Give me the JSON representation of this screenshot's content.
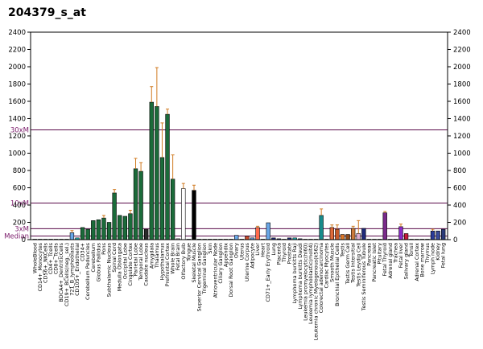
{
  "chart_data": {
    "type": "bar",
    "title": "204379_s_at",
    "ylim": [
      0,
      2400
    ],
    "yticks": [
      0,
      200,
      400,
      600,
      800,
      1000,
      1200,
      1400,
      1600,
      1800,
      2000,
      2200,
      2400
    ],
    "left_axis_ticks": [
      "0",
      "200",
      "400",
      "600",
      "800",
      "1000",
      "1200",
      "1400",
      "1600",
      "1800",
      "2000",
      "2200",
      "2400"
    ],
    "right_axis_ticks": [
      "0",
      "200",
      "400",
      "600",
      "800",
      "1000",
      "1200",
      "1400",
      "1600",
      "1800",
      "2000",
      "2200",
      "2400"
    ],
    "reference_lines": [
      {
        "label": "30xM",
        "value": 1270
      },
      {
        "label": "10xM",
        "value": 423
      },
      {
        "label": "3xM",
        "value": 127
      },
      {
        "label": "Median",
        "value": 42
      }
    ],
    "categories": [
      "WholeBlood",
      "CD14+_Monocytes",
      "CD56+_NKCells",
      "CD4+_Tcells",
      "CD8+_Tcells",
      "BDCA4+_DentriticCells",
      "CD19+_BCells(neg._sel.)",
      "721_B_lymphoblasts",
      "CD105+_Endothelial",
      "CD34+",
      "Cerebellum Peduncles",
      "Cerebellum",
      "Globus Pallidus",
      "Pons",
      "Subthalamic Nucleus",
      "Spinal Cord",
      "Medulla Oblongata",
      "Occipital Lobe",
      "Cingulate Cortex",
      "Parietal Lobe",
      "Temporal Lobe",
      "Caudate nucleus",
      "Amygdala",
      "Thalamus",
      "Hypothalamus",
      "Prefrontal Cortex",
      "Whole Brain",
      "Fetal Brain",
      "Olfactory Bulb",
      "Tongue",
      "Skeletal Muscle",
      "Superior Cervical Ganglion",
      "Trigeminal Ganglion",
      "Skin",
      "Atrioventricular Node",
      "Ciliary Ganglion",
      "Appendix",
      "Dorsal Root Ganglion",
      "Ovary",
      "Uterus",
      "Uterine Corpus",
      "Adipocyte",
      "Liver",
      "Heart",
      "CD71+_Early Erythroid",
      "Lung",
      "Placenta",
      "Thyroid",
      "Prostate",
      "Lymphoma burkitts Raji",
      "Lymphoma burkitts Daudi",
      "Leukemia promyelocytic(hl60)",
      "Leukemia lymphoblastic(molt4)",
      "Leukemia chronic Myelogenous(k562)",
      "Colorectal adenocarcinoma",
      "Cardiac Myocytes",
      "Smooth Muscle",
      "Bronchial Epithelial Cells",
      "Testis",
      "Testis Germ Cell",
      "Testis Intersitial",
      "Testis Leydig Cell",
      "Testis Seminiferous Tubule",
      "Pancreas",
      "Pancreatic Islet",
      "Pituitary",
      "Fetal Thyroid",
      "Adrenal gland",
      "Trachea",
      "Fetal liver",
      "Salivary gland",
      "Tonsil",
      "Adrenal Cortex",
      "Bone marrow",
      "Thymus",
      "Lymph node",
      "Kidney",
      "Fetal lung"
    ],
    "x_labels_shown": [
      "WholeBlood",
      "CD14+_Monocytes",
      "CD56+_NKCells",
      "CD4+_Tcells",
      "CD8+_Tcells",
      "BDCA4+_DentriticCells",
      "CD19+_BCells(neg._sel.)",
      "721_B_lymphoblasts",
      "CD105+_Endothelial",
      "CD34+",
      "Cerebellum Peduncles",
      "Cerebellum",
      "Globus Pallidus",
      "Pons",
      "Subthalamic Nucleus",
      "Spinal Cord",
      "Medulla Oblongata",
      "Occipital Lobe",
      "Cingulate Cortex",
      "Parietal Lobe",
      "Temporal Lobe",
      "Caudate nucleus",
      "Amygdala",
      "Thalamus",
      "Hypothalamus",
      "Prefrontal Cortex",
      "Whole Brain",
      "Fetal Brain",
      "Olfactory Bulb",
      "Tongue",
      "Skeletal Muscle",
      "Superior Cervical Ganglion",
      "Trigeminal Ganglion",
      "Skin",
      "Atrioventricular Node",
      "Ciliary Ganglion",
      "Appendix",
      "Dorsal Root Ganglion",
      "Ovary",
      "Uterus",
      "Uterine Corpus",
      "Adipocyte",
      "Liver",
      "Heart",
      "CD71+_Early Erythroid",
      "Lung",
      "Placenta",
      "Thyroid",
      "Prostate",
      "Lymphoma burkitts Raji",
      "Lymphoma burkitts Daudi",
      "Leukemia promyelocytic(hl60)",
      "Leukemia lymphoblastic(molt4)",
      "Leukemia chronic Myelogenous(k562)",
      "Colorectal adenocarcinoma",
      "Cardiac Myocytes",
      "Smooth Muscle",
      "Bronchial Epithelial Cells",
      "Testis",
      "Testis Germ Cell",
      "Testis Intersitial",
      "Testis Leydig Cell",
      "Testis Seminiferous Tubule",
      "Pancreas",
      "Pancreatic Islet",
      "Pituitary",
      "Fetal Thyroid",
      "Adrenal gland",
      "Trachea",
      "Fetal liver",
      "Salivary gland",
      "Tonsil",
      "Adrenal Cortex",
      "Bone marrow",
      "Thymus",
      "Lymph node",
      "Kidney",
      "Fetal lung"
    ],
    "values": [
      5,
      5,
      5,
      5,
      5,
      5,
      5,
      80,
      20,
      140,
      120,
      220,
      230,
      250,
      200,
      540,
      280,
      270,
      300,
      820,
      790,
      120,
      1590,
      1540,
      950,
      1450,
      700,
      10,
      590,
      5,
      570,
      5,
      5,
      5,
      5,
      5,
      5,
      5,
      50,
      5,
      40,
      20,
      140,
      5,
      195,
      20,
      10,
      5,
      20,
      20,
      10,
      5,
      5,
      5,
      280,
      5,
      140,
      120,
      60,
      60,
      130,
      70,
      130,
      5,
      5,
      5,
      310,
      5,
      5,
      150,
      70,
      5,
      5,
      5,
      5,
      100,
      100,
      120
    ],
    "errors": [
      0,
      0,
      0,
      0,
      0,
      0,
      0,
      25,
      0,
      0,
      0,
      0,
      0,
      30,
      0,
      40,
      0,
      0,
      40,
      120,
      100,
      0,
      180,
      450,
      400,
      60,
      280,
      0,
      60,
      0,
      60,
      0,
      0,
      0,
      0,
      0,
      0,
      0,
      0,
      0,
      0,
      0,
      15,
      0,
      0,
      0,
      0,
      0,
      0,
      0,
      0,
      0,
      0,
      0,
      75,
      0,
      30,
      50,
      0,
      0,
      25,
      150,
      0,
      0,
      0,
      0,
      15,
      0,
      0,
      30,
      0,
      0,
      0,
      0,
      0,
      20,
      0,
      0
    ],
    "colors": [
      "#1f2a7a",
      "#1f2a7a",
      "#1f2a7a",
      "#1f2a7a",
      "#1f2a7a",
      "#1f2a7a",
      "#1f2a7a",
      "#6aa7e8",
      "#1fb0b0",
      "#1b6b3a",
      "#1b6b3a",
      "#1b6b3a",
      "#1b6b3a",
      "#1b6b3a",
      "#1b6b3a",
      "#1b6b3a",
      "#1b6b3a",
      "#1b6b3a",
      "#1b6b3a",
      "#1b6b3a",
      "#1b6b3a",
      "#2a2a2a",
      "#1b6b3a",
      "#1b6b3a",
      "#1b6b3a",
      "#1b6b3a",
      "#1b6b3a",
      "#ffffff",
      "#ffffff",
      "#ffffff",
      "#000000",
      "#1f2a7a",
      "#1f2a7a",
      "#1f2a7a",
      "#1f2a7a",
      "#1f2a7a",
      "#1f2a7a",
      "#1f2a7a",
      "#6aa7e8",
      "#1f2a7a",
      "#c84a2a",
      "#6aa7e8",
      "#ff6a4a",
      "#1f2a7a",
      "#6aa7e8",
      "#1f2a7a",
      "#1f2a7a",
      "#1f2a7a",
      "#1f2a7a",
      "#1fb0b0",
      "#1f2a7a",
      "#1f2a7a",
      "#1f2a7a",
      "#1f2a7a",
      "#178c8c",
      "#1f2a7a",
      "#e06a3a",
      "#c85a2a",
      "#e07a2a",
      "#8c4a1a",
      "#cc7a3a",
      "#e0b0d0",
      "#1f2a7a",
      "#1f2a7a",
      "#1f2a7a",
      "#1f2a7a",
      "#7a2a8a",
      "#1f2a7a",
      "#1f2a7a",
      "#8a2ac8",
      "#c81a3a",
      "#1f2a7a",
      "#1f2a7a",
      "#1f2a7a",
      "#1f2a7a",
      "#2a3a9a",
      "#3a4a9a",
      "#2a3a7a"
    ]
  }
}
